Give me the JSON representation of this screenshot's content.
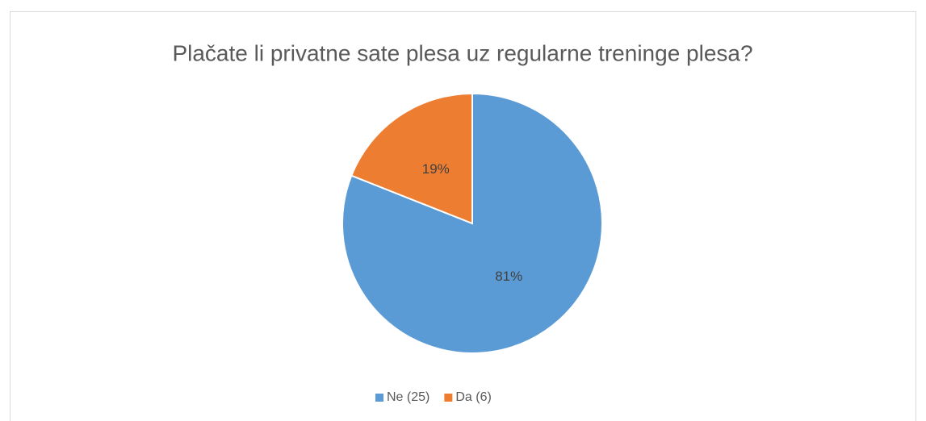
{
  "chart_data": {
    "type": "pie",
    "title": "Plačate li privatne sate plesa uz regularne treninge plesa?",
    "categories": [
      "Ne (25)",
      "Da (6)"
    ],
    "values": [
      81,
      19
    ],
    "value_labels": [
      "81%",
      "19%"
    ],
    "colors": [
      "#5b9bd5",
      "#ed7d31"
    ],
    "legend": "bottom"
  }
}
